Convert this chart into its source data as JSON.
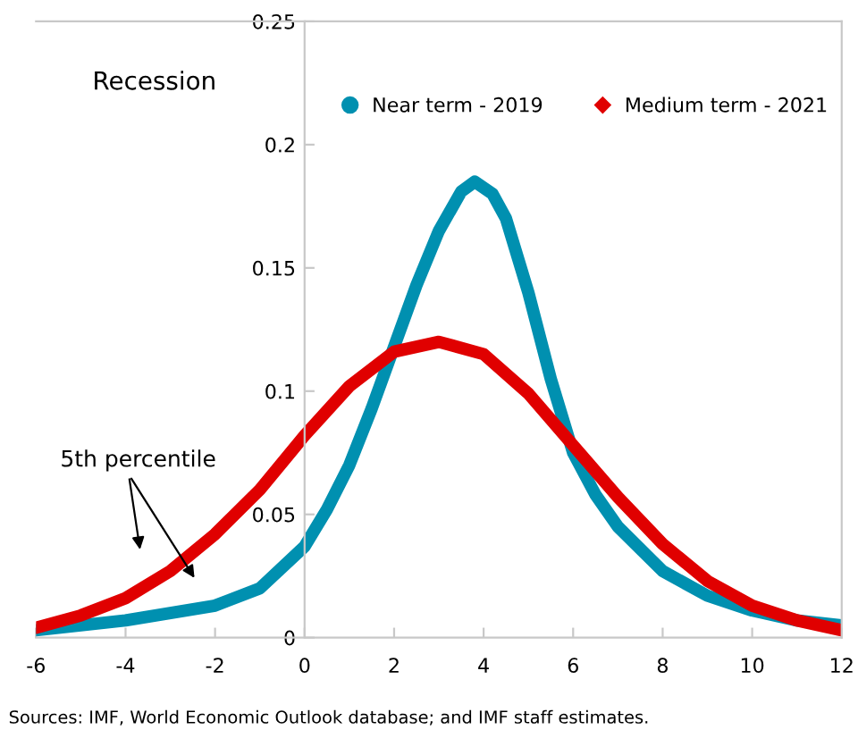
{
  "chart_data": {
    "type": "line",
    "x": [
      -6,
      -5,
      -4,
      -3,
      -2,
      -1,
      0,
      1,
      2,
      3,
      4,
      5,
      6,
      7,
      8,
      9,
      10,
      11,
      12
    ],
    "series": [
      {
        "name": "Near term - 2019",
        "color": "#0090b0",
        "x": [
          -6,
          -5,
          -4,
          -3,
          -2,
          -1,
          0,
          0.5,
          1,
          1.5,
          2,
          2.5,
          3,
          3.5,
          3.8,
          4.2,
          4.5,
          5,
          5.5,
          6,
          6.5,
          7,
          8,
          9,
          10,
          11,
          12
        ],
        "values": [
          0.003,
          0.005,
          0.007,
          0.01,
          0.013,
          0.02,
          0.037,
          0.052,
          0.07,
          0.093,
          0.118,
          0.143,
          0.165,
          0.181,
          0.185,
          0.18,
          0.17,
          0.14,
          0.105,
          0.075,
          0.058,
          0.045,
          0.027,
          0.017,
          0.011,
          0.007,
          0.005
        ]
      },
      {
        "name": "Medium term - 2021",
        "color": "#e00000",
        "values": [
          0.004,
          0.009,
          0.016,
          0.027,
          0.042,
          0.06,
          0.082,
          0.102,
          0.116,
          0.12,
          0.115,
          0.099,
          0.078,
          0.057,
          0.038,
          0.023,
          0.013,
          0.007,
          0.003
        ]
      }
    ],
    "xlim": [
      -6,
      12
    ],
    "xticks": [
      -6,
      -4,
      -2,
      0,
      2,
      4,
      6,
      8,
      10,
      12
    ],
    "ylim": [
      0,
      0.25
    ],
    "yticks": [
      0,
      0.05,
      0.1,
      0.15,
      0.2,
      0.25
    ],
    "grid": false,
    "legend": "top right",
    "line_style": "solid",
    "annotations": [
      "Recession",
      "5th percentile",
      "Sources: IMF, World Economic Outlook database; and IMF staff estimates."
    ]
  }
}
